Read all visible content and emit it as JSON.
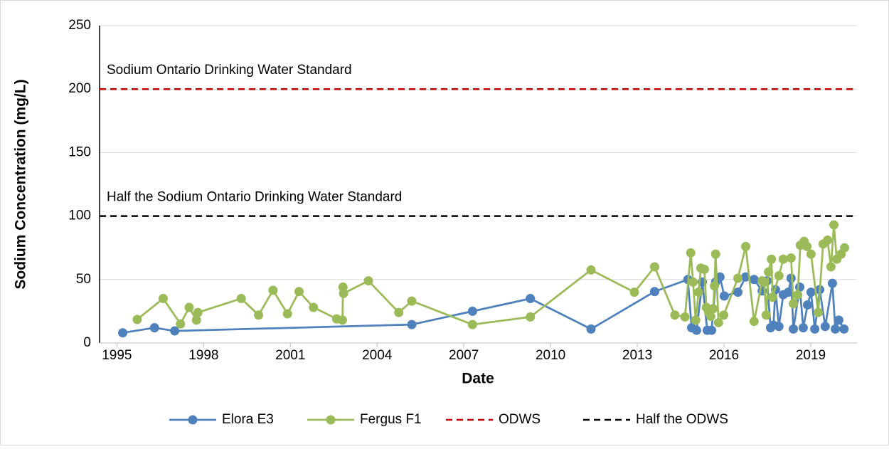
{
  "chart_data": {
    "type": "line",
    "xlabel": "Date",
    "ylabel": "Sodium Concentration (mg/L)",
    "xlim": [
      1994.4,
      2020.6
    ],
    "xticks": [
      1995,
      1998,
      2001,
      2004,
      2007,
      2010,
      2013,
      2016,
      2019
    ],
    "ylim": [
      0,
      250
    ],
    "yticks": [
      0,
      50,
      100,
      150,
      200,
      250
    ],
    "grid": true,
    "legend": "bottom",
    "series": [
      {
        "name": "Elora E3",
        "color": "#4f81bd",
        "x": [
          1995.2,
          1996.3,
          1997.0,
          2005.2,
          2007.3,
          2009.3,
          2011.4,
          2013.6,
          2014.75,
          2014.88,
          2015.05,
          2015.25,
          2015.42,
          2015.57,
          2015.71,
          2015.86,
          2016.01,
          2016.48,
          2016.75,
          2017.04,
          2017.32,
          2017.49,
          2017.61,
          2017.71,
          2017.78,
          2017.9,
          2018.05,
          2018.23,
          2018.32,
          2018.4,
          2018.62,
          2018.74,
          2018.89,
          2019.01,
          2019.14,
          2019.31,
          2019.5,
          2019.75,
          2019.85,
          2019.97,
          2020.15
        ],
        "values": [
          8,
          12,
          9.5,
          14.5,
          25,
          35,
          11,
          40.5,
          50,
          12,
          10,
          48,
          10,
          10,
          48,
          52,
          37,
          40,
          52,
          50,
          41,
          49,
          12,
          14,
          42,
          13,
          38,
          40,
          51,
          11,
          44,
          12,
          30,
          40,
          11,
          42,
          13,
          47,
          11,
          18,
          11
        ]
      },
      {
        "name": "Fergus F1",
        "color": "#9bbb59",
        "x": [
          1995.7,
          1996.6,
          1997.2,
          1997.5,
          1997.75,
          1997.8,
          1999.3,
          1999.9,
          2000.4,
          2000.9,
          2001.3,
          2001.8,
          2002.6,
          2002.8,
          2002.82,
          2002.84,
          2003.7,
          2004.75,
          2005.2,
          2007.3,
          2009.3,
          2011.4,
          2012.9,
          2013.6,
          2014.3,
          2014.65,
          2014.85,
          2014.93,
          2015.02,
          2015.12,
          2015.2,
          2015.32,
          2015.39,
          2015.47,
          2015.54,
          2015.62,
          2015.67,
          2015.71,
          2015.81,
          2015.99,
          2016.48,
          2016.75,
          2017.04,
          2017.32,
          2017.39,
          2017.46,
          2017.54,
          2017.64,
          2017.68,
          2017.9,
          2018.05,
          2018.32,
          2018.4,
          2018.55,
          2018.64,
          2018.77,
          2018.87,
          2019.01,
          2019.26,
          2019.43,
          2019.58,
          2019.7,
          2019.8,
          2019.9,
          2020.05,
          2020.17
        ],
        "values": [
          18.5,
          35,
          15,
          28,
          18,
          24,
          35,
          22,
          41.5,
          23,
          40.5,
          28,
          19,
          18,
          44,
          39,
          49,
          24,
          33,
          14.5,
          20.5,
          57.5,
          40,
          60,
          22,
          20.5,
          71,
          48,
          18,
          40,
          59,
          58,
          28,
          24,
          21,
          27,
          45,
          70,
          16,
          22,
          51,
          76,
          17,
          49,
          48,
          22,
          56,
          66,
          36,
          53,
          66,
          67,
          31,
          38,
          77,
          80,
          76,
          70,
          24,
          78,
          81,
          60,
          93,
          66,
          70,
          75
        ]
      }
    ],
    "reference_lines": [
      {
        "name": "ODWS",
        "value": 200,
        "color": "#c00000",
        "label": "Sodium Ontario Drinking Water Standard"
      },
      {
        "name": "Half the ODWS",
        "value": 100,
        "color": "#000000",
        "label": "Half the Sodium Ontario Drinking Water Standard"
      }
    ]
  }
}
